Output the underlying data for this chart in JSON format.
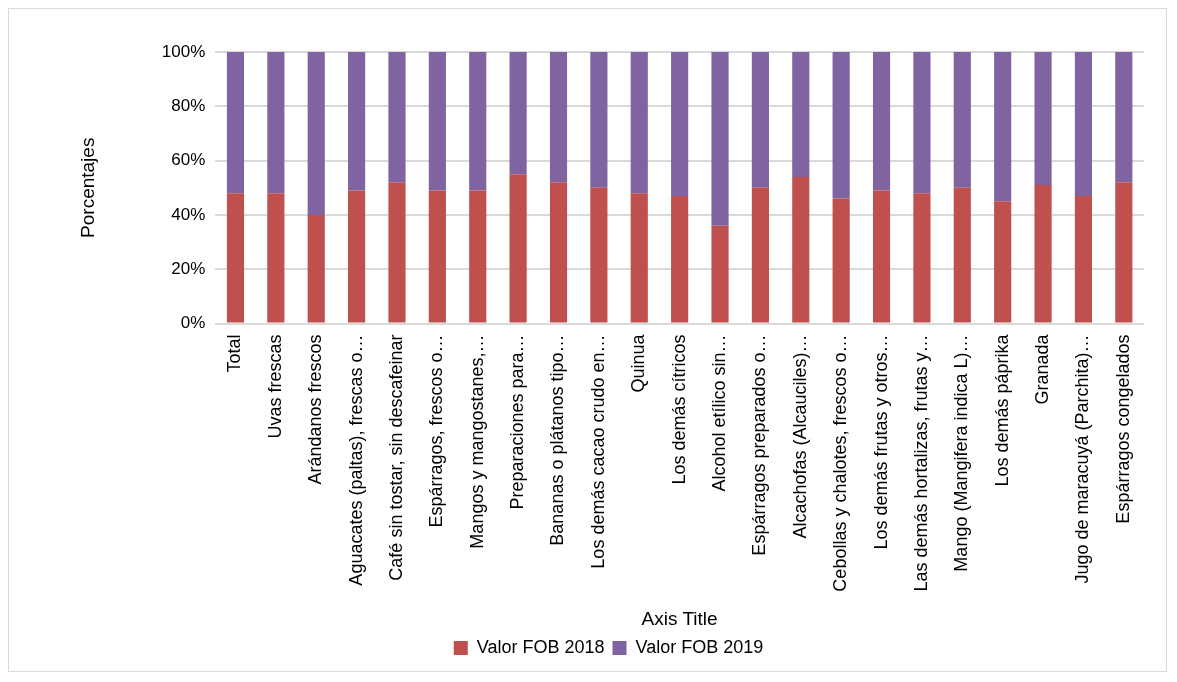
{
  "chart_data": {
    "type": "bar",
    "stacked": true,
    "categories": [
      "Total",
      "Uvas frescas",
      "Arándanos frescos",
      "Aguacates (paltas), frescas o…",
      "Café sin tostar, sin descafeinar",
      "Espárragos, frescos o…",
      "Mangos y mangostanes,…",
      "Preparaciones para…",
      "Bananas o plátanos tipo…",
      "Los demás cacao crudo en…",
      "Quinua",
      "Los demás cítricos",
      "Alcohol etílico sin…",
      "Espárragos preparados o…",
      "Alcachofas (Alcauciles)…",
      "Cebollas y chalotes, frescos o…",
      "Los demás frutas y otros…",
      "Las demás hortalizas, frutas y…",
      "Mango (Mangifera indica L)…",
      "Los demás páprika",
      "Granada",
      "Jugo de maracuyá (Parchita)…",
      "Espárragos congelados"
    ],
    "series": [
      {
        "name": "Valor FOB 2018",
        "color": "#c0504d",
        "values": [
          48,
          48,
          40,
          49,
          52,
          49,
          49,
          55,
          52,
          50,
          48,
          47,
          36,
          50,
          54,
          46,
          49,
          48,
          50,
          45,
          51,
          47,
          52
        ]
      },
      {
        "name": "Valor FOB 2019",
        "color": "#8064a2",
        "values": [
          52,
          52,
          60,
          51,
          48,
          51,
          51,
          45,
          48,
          50,
          52,
          53,
          64,
          50,
          46,
          54,
          51,
          52,
          50,
          55,
          49,
          53,
          48
        ]
      }
    ],
    "ylim": [
      0,
      100
    ],
    "yticks": [
      {
        "value": 0,
        "label": "0%"
      },
      {
        "value": 20,
        "label": "20%"
      },
      {
        "value": 40,
        "label": "40%"
      },
      {
        "value": 60,
        "label": "60%"
      },
      {
        "value": 80,
        "label": "80%"
      },
      {
        "value": 100,
        "label": "100%"
      }
    ],
    "xlabel": "Axis Title",
    "ylabel": "Porcentajes",
    "legend": "bottom",
    "grid": "y"
  }
}
